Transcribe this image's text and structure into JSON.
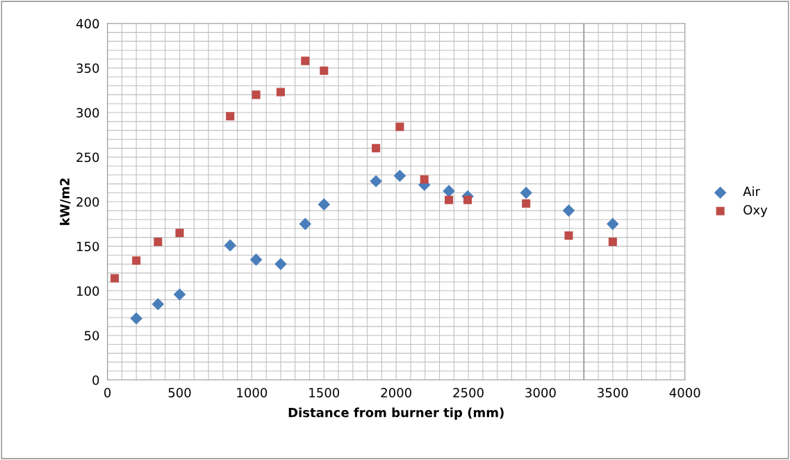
{
  "chart_data": {
    "type": "scatter",
    "xlabel": "Distance from burner tip (mm)",
    "ylabel": "kW/m2",
    "xlim": [
      0,
      4000
    ],
    "xticks": [
      0,
      500,
      1000,
      1500,
      2000,
      2500,
      3000,
      3500,
      4000
    ],
    "ylim": [
      0,
      400
    ],
    "yticks": [
      0,
      50,
      100,
      150,
      200,
      250,
      300,
      350,
      400
    ],
    "grid": true,
    "legend": "right",
    "ref_lines": [
      {
        "axis": "x",
        "value": 3300,
        "color": "#a6a6a6"
      }
    ],
    "series": [
      {
        "name": "Air",
        "color": "#4a7ebb",
        "marker": "diamond",
        "x": [
          200,
          350,
          500,
          850,
          1030,
          1200,
          1370,
          1500,
          1860,
          2025,
          2195,
          2365,
          2495,
          2900,
          3195,
          3500
        ],
        "values": [
          69,
          85,
          96,
          151,
          135,
          130,
          175,
          197,
          223,
          229,
          219,
          212,
          206,
          210,
          190,
          175
        ]
      },
      {
        "name": "Oxy",
        "color": "#be4b48",
        "marker": "square",
        "x": [
          50,
          200,
          350,
          500,
          850,
          1030,
          1200,
          1370,
          1500,
          1860,
          2025,
          2195,
          2365,
          2495,
          2900,
          3195,
          3500
        ],
        "values": [
          114,
          134,
          155,
          165,
          296,
          320,
          323,
          358,
          347,
          260,
          284,
          225,
          202,
          202,
          198,
          162,
          155
        ]
      }
    ]
  }
}
